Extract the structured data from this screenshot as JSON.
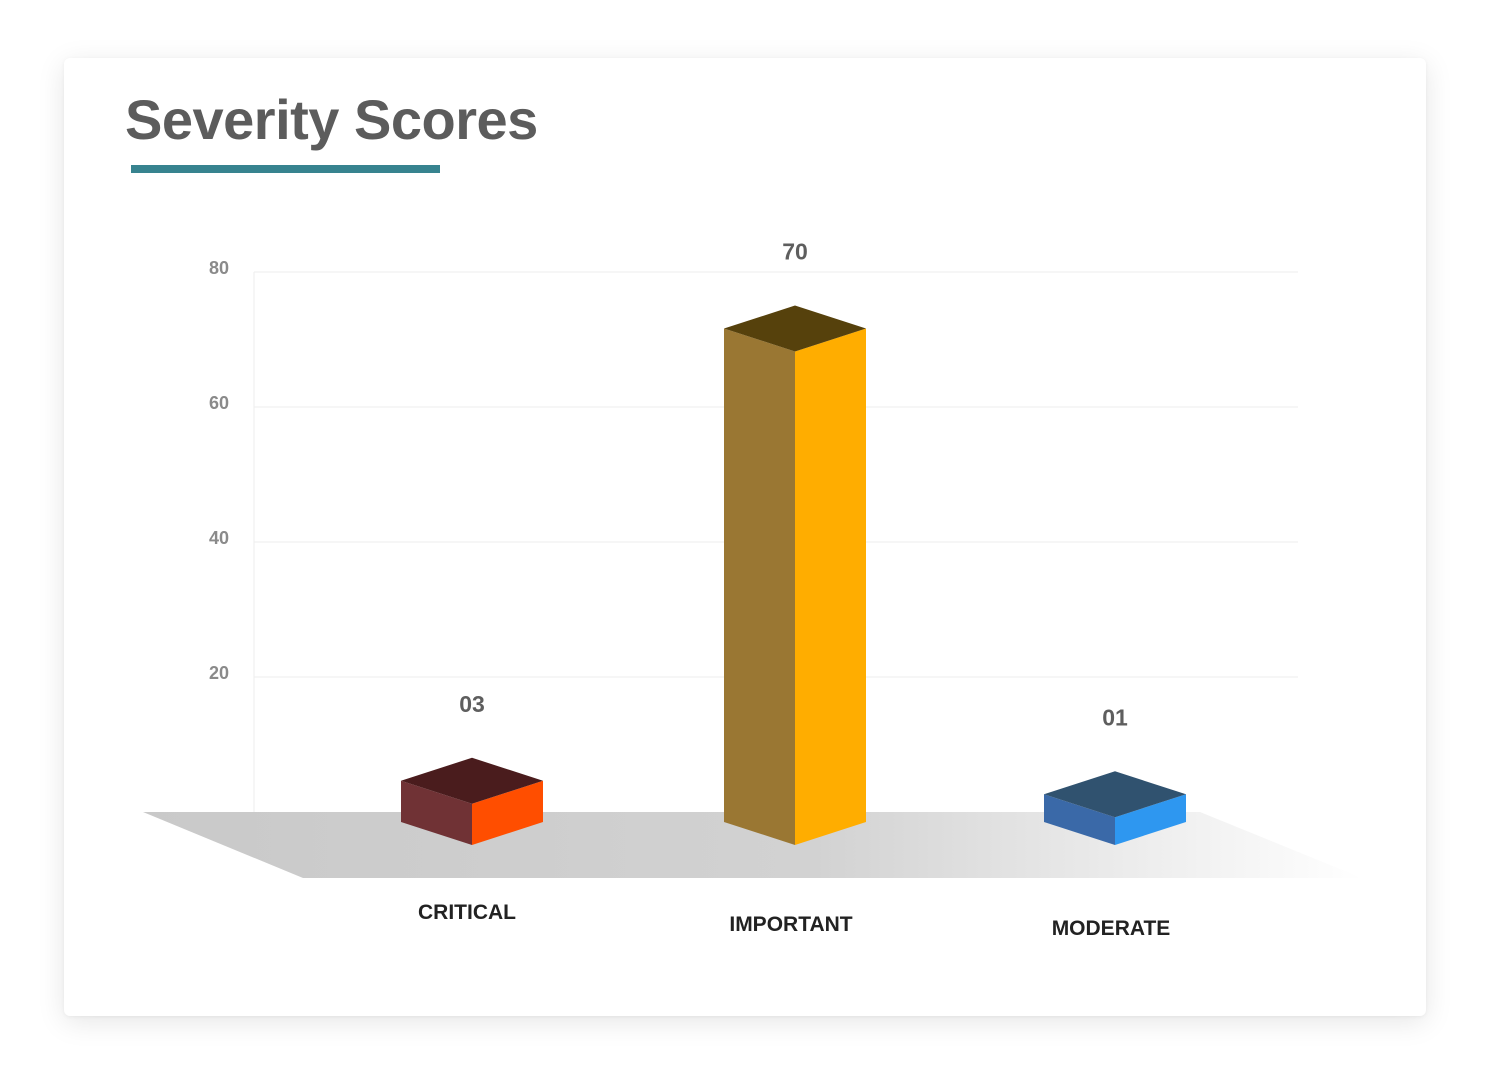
{
  "chart_data": {
    "type": "bar",
    "title": "Severity Scores",
    "xlabel": "",
    "ylabel": "",
    "ylim": [
      0,
      80
    ],
    "yticks": [
      20,
      40,
      60,
      80
    ],
    "grid": true,
    "categories": [
      "CRITICAL",
      "IMPORTANT",
      "MODERATE"
    ],
    "values": [
      3,
      70,
      1
    ],
    "value_labels": [
      "03",
      "70",
      "01"
    ],
    "colors": {
      "title_underline": "#37838f",
      "critical": {
        "top": "#4a1c1d",
        "left": "#703235",
        "right": "#ff4e00"
      },
      "important": {
        "top": "#56410c",
        "left": "#9a7733",
        "right": "#ffad00"
      },
      "moderate": {
        "top": "#30526f",
        "left": "#3a69a8",
        "right": "#2e97f0"
      }
    }
  }
}
